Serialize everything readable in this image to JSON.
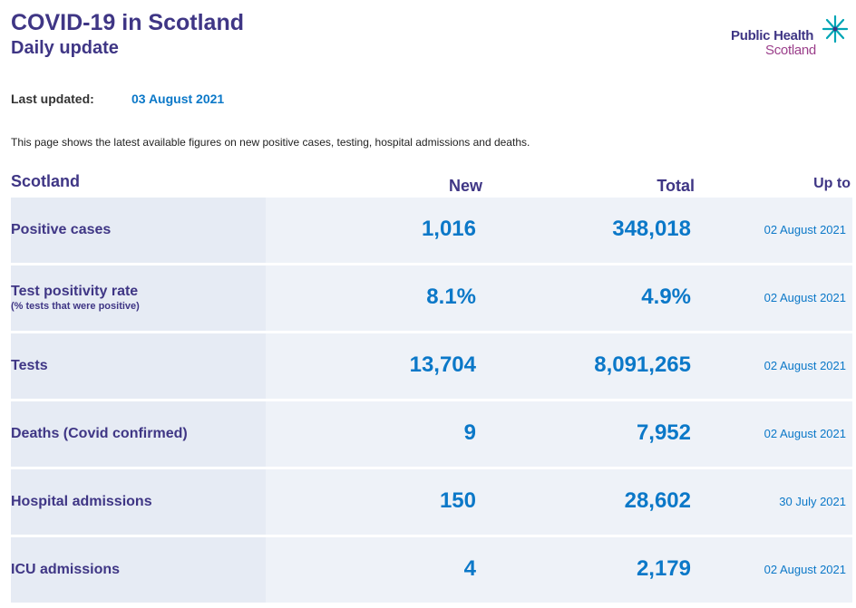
{
  "header": {
    "title": "COVID-19 in Scotland",
    "subtitle": "Daily update"
  },
  "logo": {
    "line1": "Public Health",
    "line2": "Scotland",
    "star_color": "#00a5b5"
  },
  "updated": {
    "label": "Last updated:",
    "value": "03 August 2021"
  },
  "intro": "This page shows the latest available figures on new positive cases, testing, hospital admissions and deaths.",
  "table": {
    "headers": {
      "region": "Scotland",
      "new": "New",
      "total": "Total",
      "up_to": "Up to"
    },
    "rows": [
      {
        "label": "Positive cases",
        "sublabel": "",
        "new": "1,016",
        "total": "348,018",
        "date": "02 August 2021"
      },
      {
        "label": "Test positivity rate",
        "sublabel": "(% tests that were positive)",
        "new": "8.1%",
        "total": "4.9%",
        "date": "02 August 2021"
      },
      {
        "label": "Tests",
        "sublabel": "",
        "new": "13,704",
        "total": "8,091,265",
        "date": "02 August 2021"
      },
      {
        "label": "Deaths (Covid confirmed)",
        "sublabel": "",
        "new": "9",
        "total": "7,952",
        "date": "02 August 2021"
      },
      {
        "label": "Hospital admissions",
        "sublabel": "",
        "new": "150",
        "total": "28,602",
        "date": "30 July 2021"
      },
      {
        "label": "ICU admissions",
        "sublabel": "",
        "new": "4",
        "total": "2,179",
        "date": "02 August 2021"
      }
    ]
  },
  "colors": {
    "heading": "#3f3685",
    "accent": "#0b78c8",
    "logo_secondary": "#9b3f8b",
    "row_bg": "#eef2f8",
    "label_cell_bg": "#e6ebf4"
  }
}
